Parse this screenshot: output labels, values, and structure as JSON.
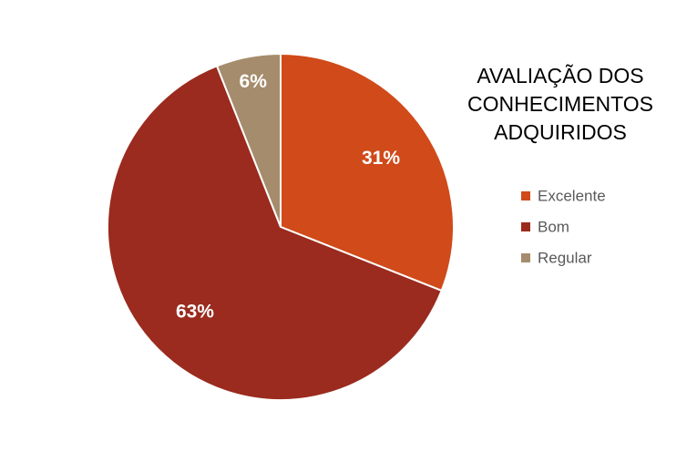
{
  "chart_data": {
    "type": "pie",
    "title": "AVALIAÇÃO DOS CONHECIMENTOS ADQUIRIDOS",
    "categories": [
      "Excelente",
      "Bom",
      "Regular"
    ],
    "values": [
      31,
      63,
      6
    ],
    "value_labels": [
      "31%",
      "63%",
      "6%"
    ],
    "colors": [
      "#d04a1a",
      "#9a2b1e",
      "#a58c6c"
    ],
    "legend": "right"
  }
}
